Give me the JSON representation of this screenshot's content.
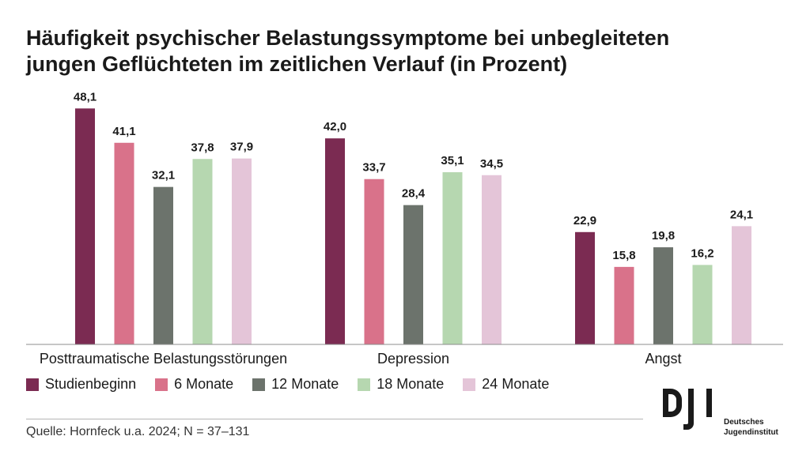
{
  "title_line1": "Häufigkeit psychischer Belastungssymptome bei unbegleiteten",
  "title_line2": "jungen Geflüchteten im zeitlichen Verlauf (in Prozent)",
  "source": "Quelle: Hornfeck u.a. 2024; N = 37–131",
  "logo": {
    "mark": "DJI",
    "line1": "Deutsches",
    "line2": "Jugendinstitut"
  },
  "chart_data": {
    "type": "bar",
    "categories": [
      "Posttraumatische Belastungsstörungen",
      "Depression",
      "Angst"
    ],
    "series": [
      {
        "name": "Studienbeginn",
        "color": "#7b2b52",
        "values": [
          48.1,
          42.0,
          22.9
        ],
        "labels": [
          "48,1",
          "42,0",
          "22,9"
        ]
      },
      {
        "name": "6 Monate",
        "color": "#d9728a",
        "values": [
          41.1,
          33.7,
          15.8
        ],
        "labels": [
          "41,1",
          "33,7",
          "15,8"
        ]
      },
      {
        "name": "12 Monate",
        "color": "#6c736c",
        "values": [
          32.1,
          28.4,
          19.8
        ],
        "labels": [
          "32,1",
          "28,4",
          "19,8"
        ]
      },
      {
        "name": "18 Monate",
        "color": "#b6d7b0",
        "values": [
          37.8,
          35.1,
          16.2
        ],
        "labels": [
          "37,8",
          "35,1",
          "16,2"
        ]
      },
      {
        "name": "24 Monate",
        "color": "#e4c5d8",
        "values": [
          37.9,
          34.5,
          24.1
        ],
        "labels": [
          "37,9",
          "34,5",
          "24,1"
        ]
      }
    ],
    "ylim": [
      0,
      50
    ],
    "legend_position": "bottom-left",
    "grid": false
  }
}
